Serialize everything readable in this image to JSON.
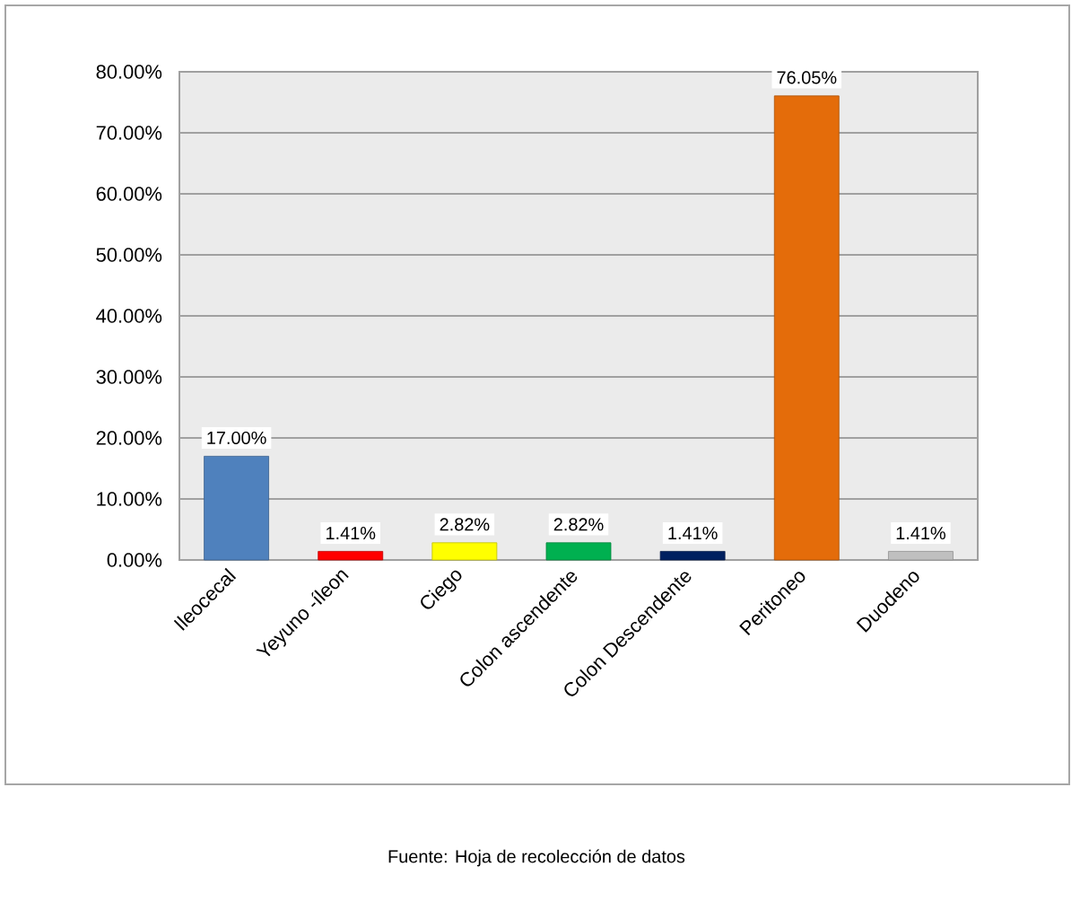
{
  "chart_data": {
    "type": "bar",
    "categories": [
      "Ileocecal",
      "Yeyuno -íleon",
      "Ciego",
      "Colon ascendente",
      "Colon Descendente",
      "Peritoneo",
      "Duodeno"
    ],
    "values": [
      17.0,
      1.41,
      2.82,
      2.82,
      1.41,
      76.05,
      1.41
    ],
    "value_labels": [
      "17.00%",
      "1.41%",
      "2.82%",
      "2.82%",
      "1.41%",
      "76.05%",
      "1.41%"
    ],
    "colors": [
      "#4f81bd",
      "#ff0000",
      "#ffff00",
      "#00b050",
      "#002060",
      "#e46c0a",
      "#bfbfbf"
    ],
    "ylim": [
      0,
      80
    ],
    "yticks": [
      {
        "value": 0,
        "label": "0.00%"
      },
      {
        "value": 10,
        "label": "10.00%"
      },
      {
        "value": 20,
        "label": "20.00%"
      },
      {
        "value": 30,
        "label": "30.00%"
      },
      {
        "value": 40,
        "label": "40.00%"
      },
      {
        "value": 50,
        "label": "50.00%"
      },
      {
        "value": 60,
        "label": "60.00%"
      },
      {
        "value": 70,
        "label": "70.00%"
      },
      {
        "value": 80,
        "label": "80.00%"
      }
    ],
    "grid": "y",
    "annotations": [
      "Fuente: Hoja  de recolección de datos"
    ]
  }
}
